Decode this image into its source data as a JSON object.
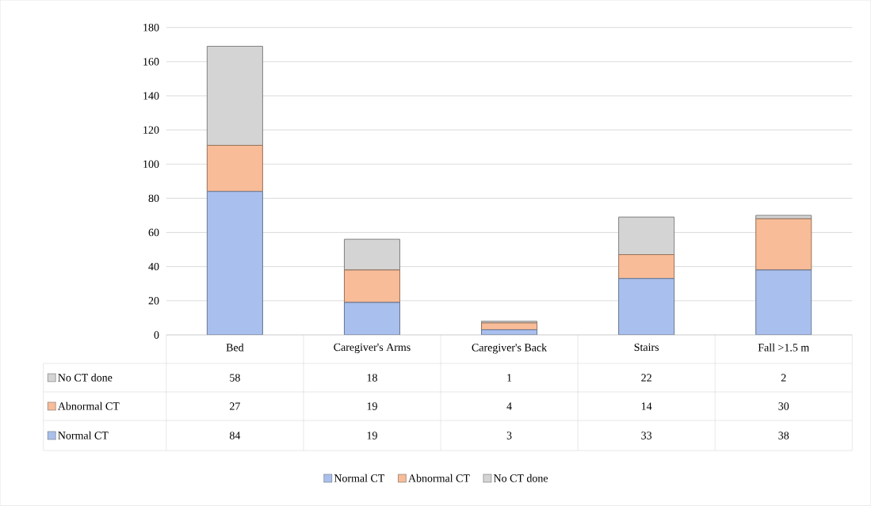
{
  "chart_data": {
    "type": "bar",
    "stacked": true,
    "categories": [
      "Bed",
      "Caregiver's Arms",
      "Caregiver's Back",
      "Stairs",
      "Fall >1.5 m"
    ],
    "series": [
      {
        "name": "Normal CT",
        "color": "#a9c0ee",
        "values": [
          84,
          19,
          3,
          33,
          38
        ]
      },
      {
        "name": "Abnormal CT",
        "color": "#f8bc98",
        "values": [
          27,
          19,
          4,
          14,
          30
        ]
      },
      {
        "name": "No CT done",
        "color": "#d4d4d4",
        "values": [
          58,
          18,
          1,
          22,
          2
        ]
      }
    ],
    "ylim": [
      0,
      180
    ],
    "yticks": [
      0,
      20,
      40,
      60,
      80,
      100,
      120,
      140,
      160,
      180
    ],
    "grid": "y",
    "legend": "bottom",
    "data_labels": true
  }
}
